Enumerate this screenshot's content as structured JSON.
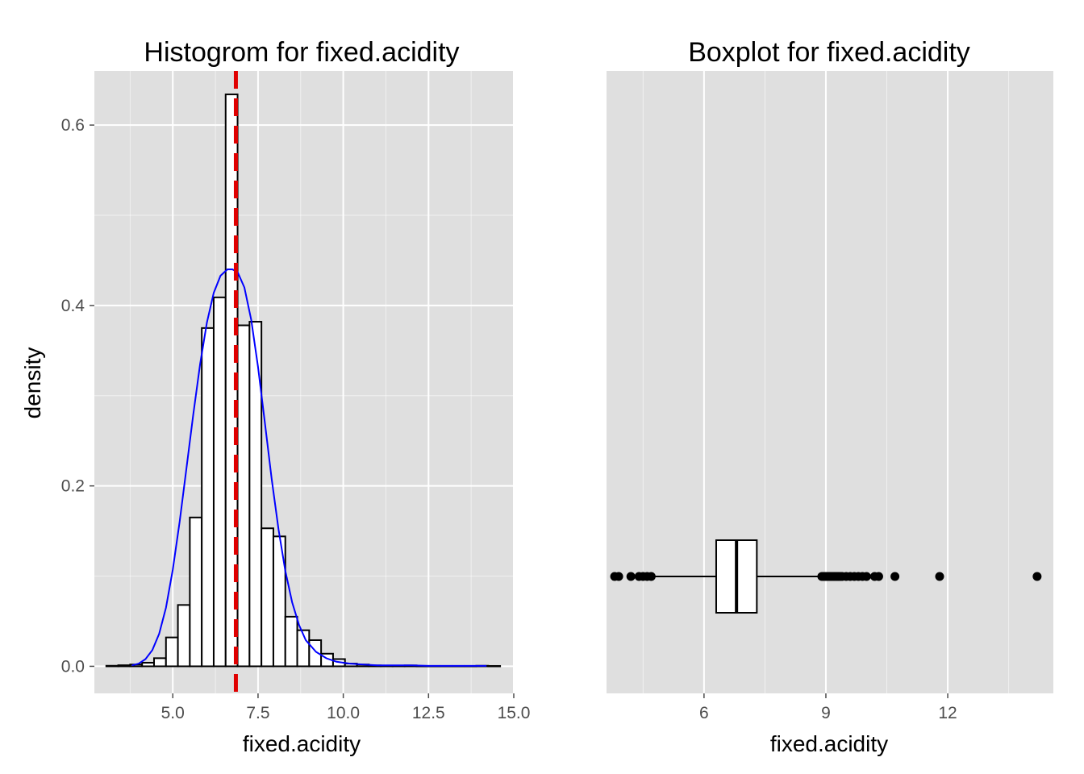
{
  "colors": {
    "panel_bg": "#DFDFDF",
    "grid": "#FFFFFF",
    "bar_fill": "#FFFFFF",
    "bar_outline": "#000000",
    "density_curve": "#0000FF",
    "mean_line": "#E00000",
    "box_outline": "#000000",
    "outlier": "#000000"
  },
  "chart_data": [
    {
      "type": "bar",
      "subtype": "histogram",
      "title": "Histogrom for fixed.acidity",
      "xlabel": "fixed.acidity",
      "ylabel": "density",
      "xlim": [
        2.7,
        15.0
      ],
      "ylim": [
        -0.03,
        0.66
      ],
      "x_ticks": [
        5.0,
        7.5,
        10.0,
        12.5,
        15.0
      ],
      "x_tick_labels": [
        "5.0",
        "7.5",
        "10.0",
        "12.5",
        "15.0"
      ],
      "y_ticks": [
        0.0,
        0.2,
        0.4,
        0.6
      ],
      "y_tick_labels": [
        "0.0",
        "0.2",
        "0.4",
        "0.6"
      ],
      "grid": true,
      "bin_width": 0.35,
      "bins": [
        {
          "x0": 3.05,
          "x1": 3.4,
          "value": 0.0006
        },
        {
          "x0": 3.4,
          "x1": 3.75,
          "value": 0.0012
        },
        {
          "x0": 3.75,
          "x1": 4.1,
          "value": 0.002
        },
        {
          "x0": 4.1,
          "x1": 4.45,
          "value": 0.004
        },
        {
          "x0": 4.45,
          "x1": 4.8,
          "value": 0.009
        },
        {
          "x0": 4.8,
          "x1": 5.15,
          "value": 0.032
        },
        {
          "x0": 5.15,
          "x1": 5.5,
          "value": 0.068
        },
        {
          "x0": 5.5,
          "x1": 5.85,
          "value": 0.165
        },
        {
          "x0": 5.85,
          "x1": 6.2,
          "value": 0.375
        },
        {
          "x0": 6.2,
          "x1": 6.55,
          "value": 0.409
        },
        {
          "x0": 6.55,
          "x1": 6.9,
          "value": 0.634
        },
        {
          "x0": 6.9,
          "x1": 7.25,
          "value": 0.378
        },
        {
          "x0": 7.25,
          "x1": 7.6,
          "value": 0.382
        },
        {
          "x0": 7.6,
          "x1": 7.95,
          "value": 0.153
        },
        {
          "x0": 7.95,
          "x1": 8.3,
          "value": 0.144
        },
        {
          "x0": 8.3,
          "x1": 8.65,
          "value": 0.055
        },
        {
          "x0": 8.65,
          "x1": 9.0,
          "value": 0.04
        },
        {
          "x0": 9.0,
          "x1": 9.35,
          "value": 0.029
        },
        {
          "x0": 9.35,
          "x1": 9.7,
          "value": 0.014
        },
        {
          "x0": 9.7,
          "x1": 10.05,
          "value": 0.008
        },
        {
          "x0": 10.05,
          "x1": 10.4,
          "value": 0.003
        },
        {
          "x0": 10.4,
          "x1": 10.75,
          "value": 0.002
        },
        {
          "x0": 10.75,
          "x1": 11.1,
          "value": 0.001
        },
        {
          "x0": 11.1,
          "x1": 11.45,
          "value": 0.0006
        },
        {
          "x0": 11.45,
          "x1": 11.8,
          "value": 0.0006
        },
        {
          "x0": 11.8,
          "x1": 12.15,
          "value": 0.001
        },
        {
          "x0": 12.15,
          "x1": 12.5,
          "value": 0.0004
        },
        {
          "x0": 12.5,
          "x1": 12.85,
          "value": 0.0004
        },
        {
          "x0": 12.85,
          "x1": 13.2,
          "value": 0.0004
        },
        {
          "x0": 13.2,
          "x1": 13.55,
          "value": 0.0004
        },
        {
          "x0": 13.55,
          "x1": 13.9,
          "value": 0.0004
        },
        {
          "x0": 13.9,
          "x1": 14.25,
          "value": 0.0006
        },
        {
          "x0": 14.25,
          "x1": 14.6,
          "value": 0.0004
        }
      ],
      "density_curve": {
        "x": [
          3.8,
          4.0,
          4.2,
          4.4,
          4.6,
          4.8,
          5.0,
          5.2,
          5.4,
          5.6,
          5.8,
          6.0,
          6.2,
          6.4,
          6.6,
          6.75,
          6.9,
          7.1,
          7.3,
          7.5,
          7.7,
          7.9,
          8.1,
          8.3,
          8.5,
          8.7,
          8.9,
          9.2,
          9.5,
          9.8,
          10.2,
          10.6,
          11.0,
          11.5,
          12.0,
          12.5,
          13.0,
          13.5,
          14.2
        ],
        "y": [
          0.001,
          0.003,
          0.008,
          0.018,
          0.036,
          0.065,
          0.107,
          0.16,
          0.219,
          0.279,
          0.335,
          0.381,
          0.414,
          0.433,
          0.44,
          0.44,
          0.437,
          0.42,
          0.384,
          0.332,
          0.27,
          0.208,
          0.152,
          0.106,
          0.071,
          0.046,
          0.029,
          0.016,
          0.009,
          0.005,
          0.003,
          0.002,
          0.001,
          0.001,
          0.001,
          0.0005,
          0.0005,
          0.0005,
          0.0005
        ]
      },
      "mean_line": {
        "x": 6.85,
        "style": "dashed"
      }
    },
    {
      "type": "boxplot",
      "orientation": "horizontal",
      "title": "Boxplot for fixed.acidity",
      "xlabel": "fixed.acidity",
      "ylabel": "",
      "xlim": [
        3.6,
        14.6
      ],
      "x_ticks": [
        6,
        9,
        12
      ],
      "x_tick_labels": [
        "6",
        "9",
        "12"
      ],
      "grid": true,
      "box": {
        "whisker_low": 4.8,
        "q1": 6.3,
        "median": 6.8,
        "q3": 7.3,
        "whisker_high": 8.8
      },
      "outliers": [
        3.8,
        3.9,
        4.2,
        4.4,
        4.5,
        4.6,
        4.7,
        8.9,
        8.95,
        9.0,
        9.05,
        9.1,
        9.15,
        9.2,
        9.25,
        9.3,
        9.35,
        9.4,
        9.5,
        9.6,
        9.7,
        9.8,
        9.9,
        10.0,
        10.2,
        10.3,
        10.7,
        11.8,
        14.2
      ]
    }
  ]
}
